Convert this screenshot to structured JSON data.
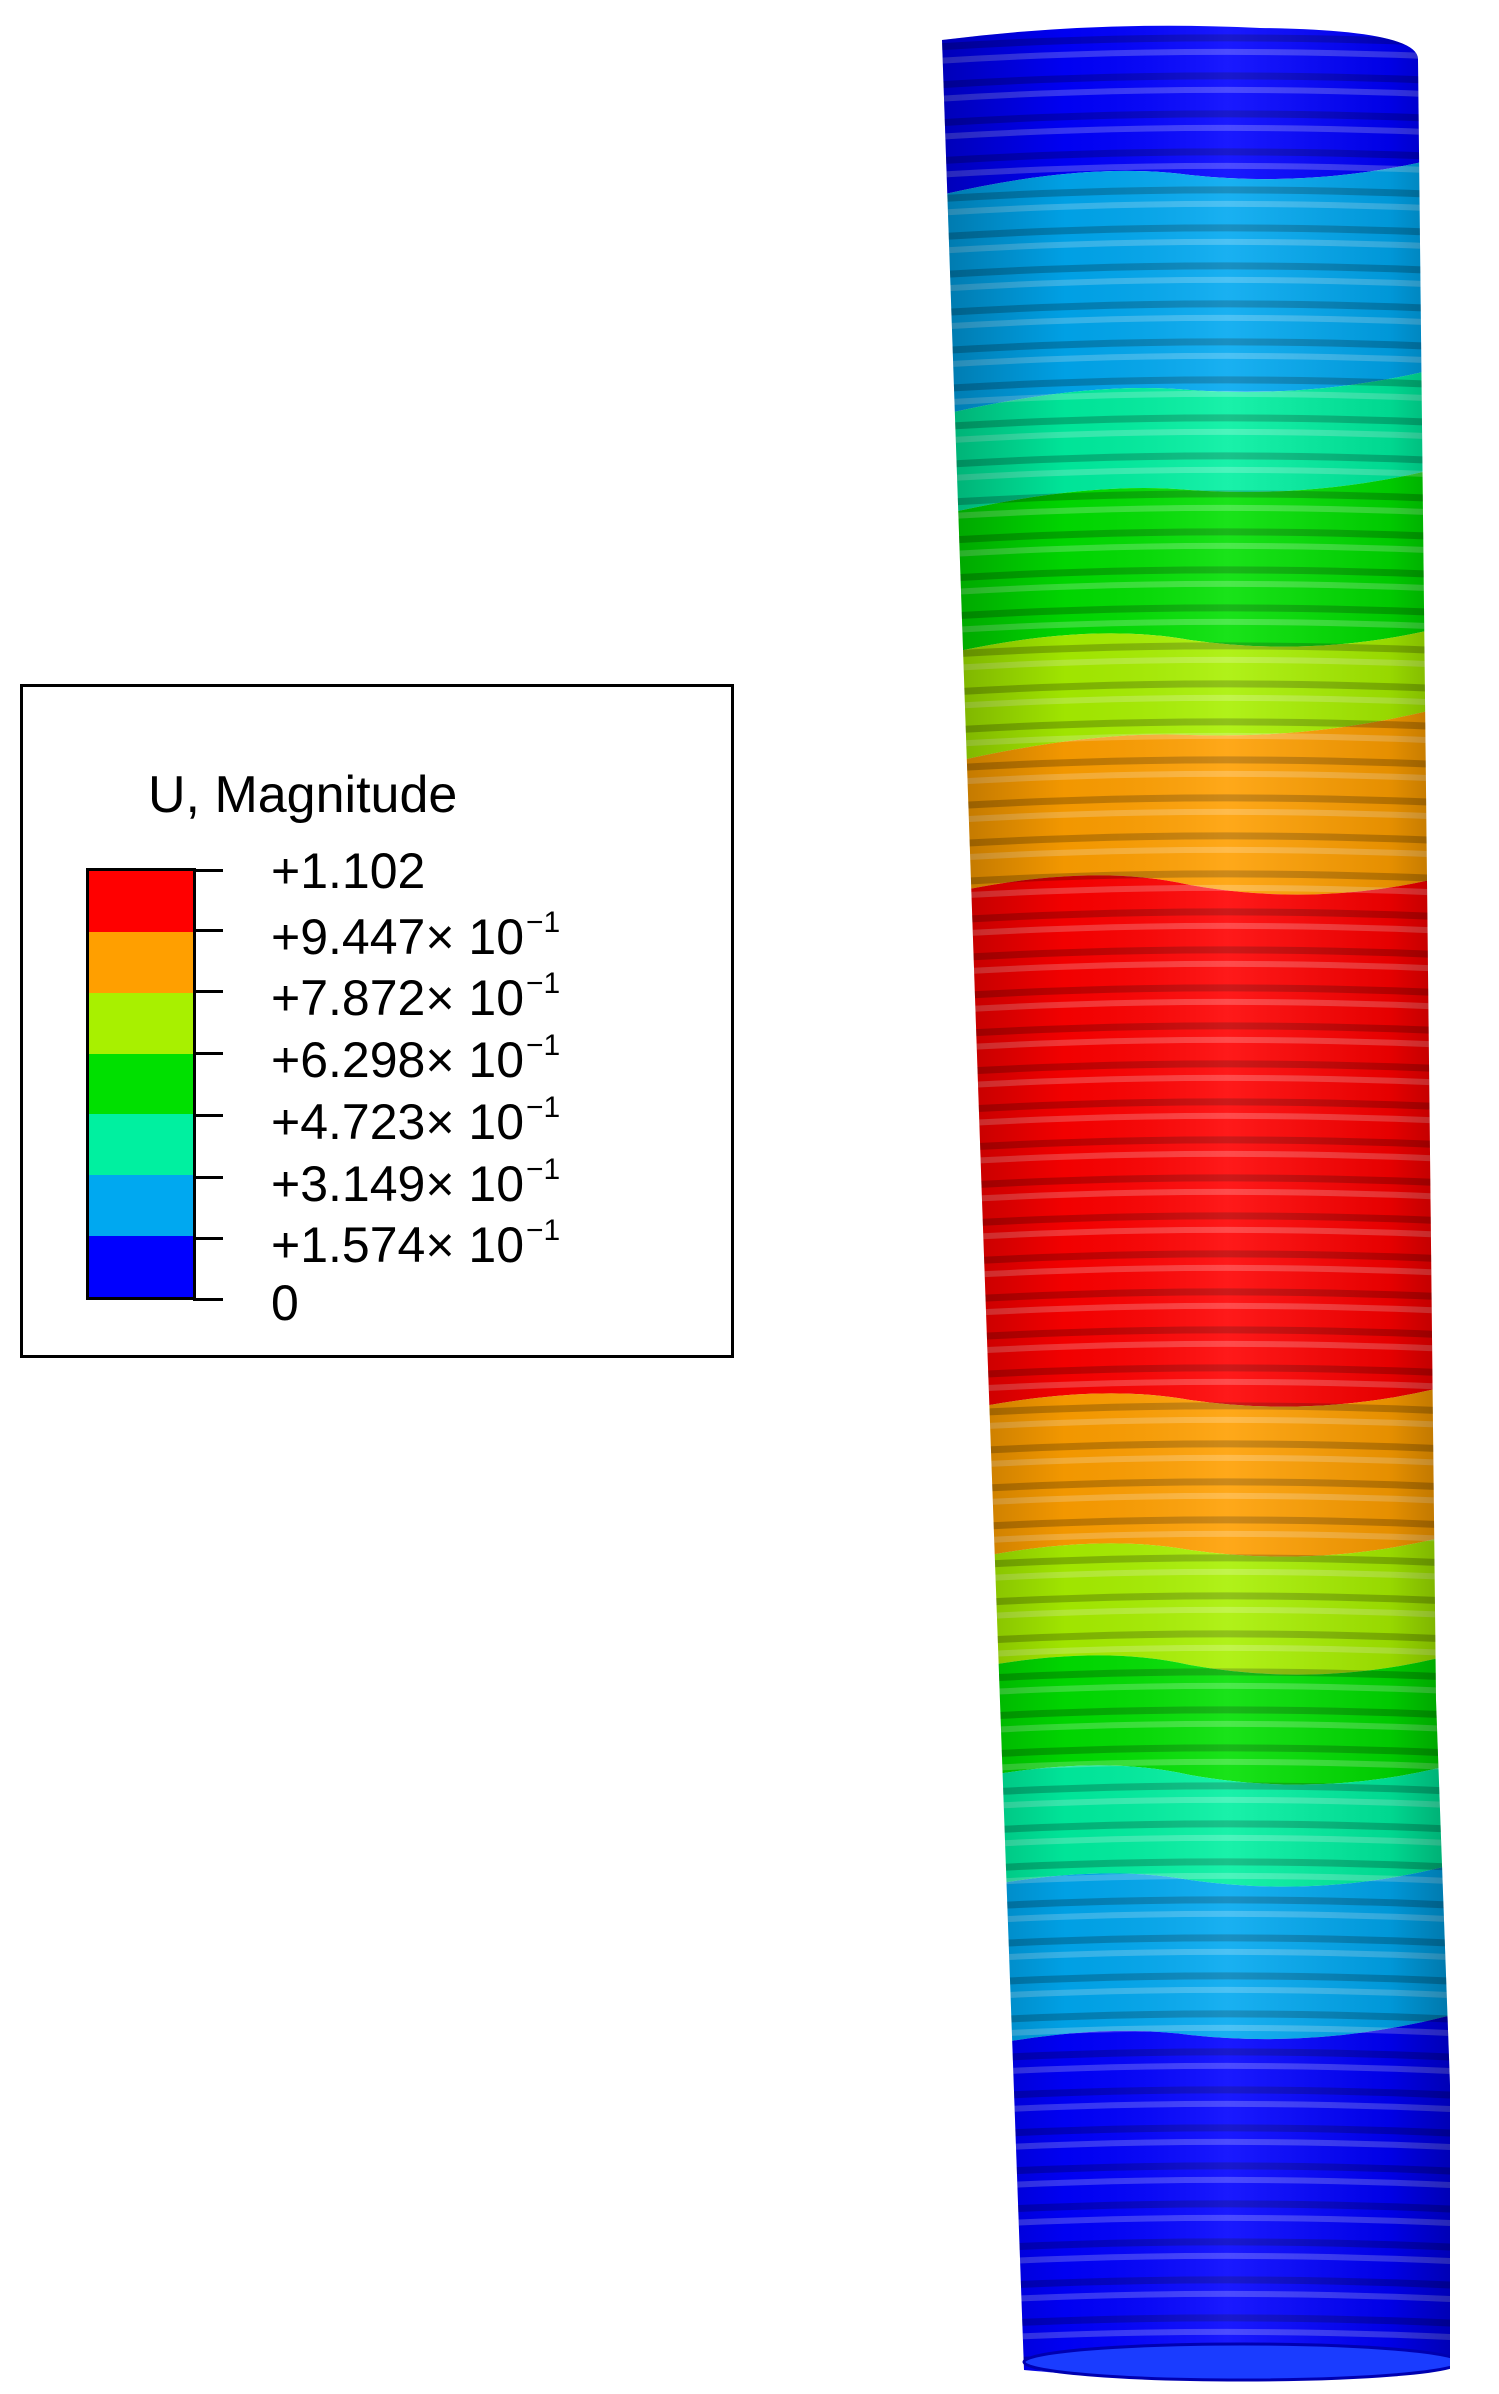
{
  "legend": {
    "title": "U, Magnitude",
    "colors": [
      "#ff0000",
      "#ff9f00",
      "#a8f000",
      "#00e000",
      "#00f0a0",
      "#00a8f0",
      "#0000ff"
    ],
    "labels": [
      {
        "mantissa": "+1.102",
        "exp": ""
      },
      {
        "mantissa": "+9.447× 10",
        "exp": "−1"
      },
      {
        "mantissa": "+7.872× 10",
        "exp": "−1"
      },
      {
        "mantissa": "+6.298× 10",
        "exp": "−1"
      },
      {
        "mantissa": "+4.723× 10",
        "exp": "−1"
      },
      {
        "mantissa": "+3.149× 10",
        "exp": "−1"
      },
      {
        "mantissa": "+1.574× 10",
        "exp": "−1"
      },
      {
        "mantissa": "0",
        "exp": ""
      }
    ]
  },
  "model": {
    "description_colors": {
      "blue": "#0000ff",
      "lightblue": "#00a8f0",
      "teal": "#00f0a0",
      "green": "#00e000",
      "yellow": "#a8f000",
      "orange": "#ff9f00",
      "red": "#ff0000"
    }
  }
}
